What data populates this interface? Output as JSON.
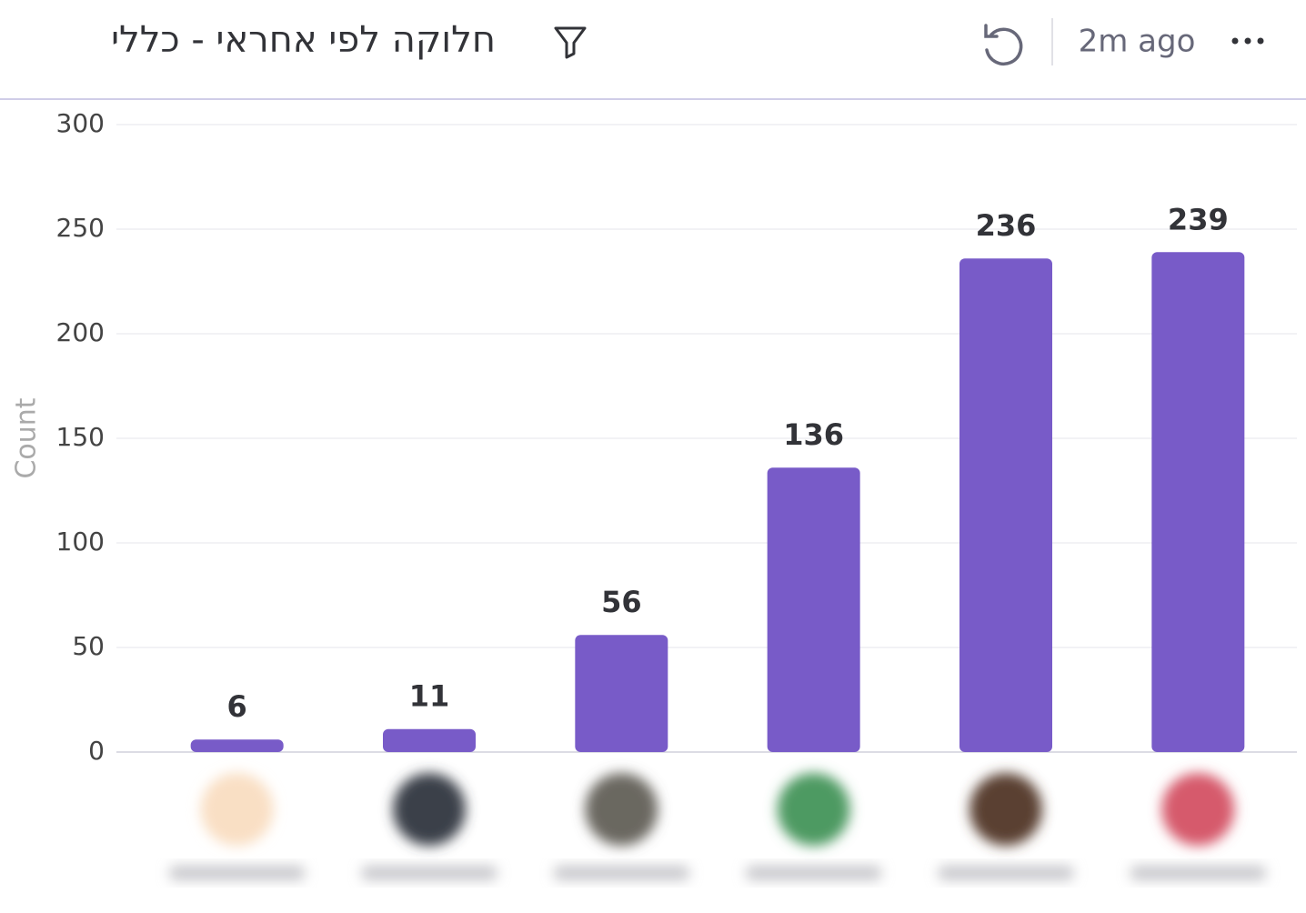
{
  "header": {
    "updated": "2m ago"
  },
  "chart_data": {
    "type": "bar",
    "title": "חלוקה לפי אחראי - כללי",
    "y_label": "Count",
    "categories": [
      null,
      null,
      null,
      null,
      null,
      null
    ],
    "values": [
      6,
      11,
      56,
      136,
      236,
      239
    ],
    "color": "#785bc8",
    "ylim": [
      0,
      300
    ],
    "yticks": [
      0,
      50,
      100,
      150,
      200,
      250,
      300
    ],
    "grid": true
  }
}
